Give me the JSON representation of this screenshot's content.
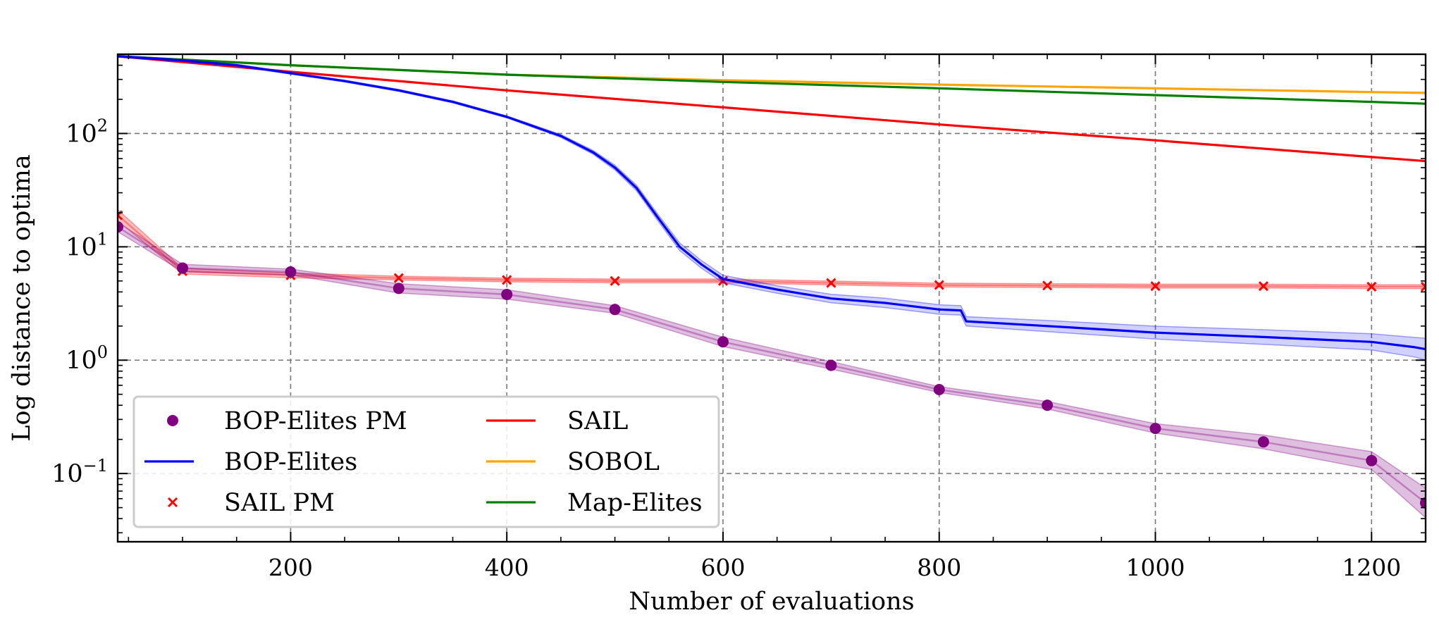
{
  "chart_data": {
    "type": "line",
    "title": "",
    "xlabel": "Number of evaluations",
    "ylabel": "Log distance to optima",
    "xlim": [
      40,
      1250
    ],
    "ylim": [
      0.025,
      500
    ],
    "yscale": "log",
    "grid": true,
    "legend_position": "lower-left",
    "x_ticks": [
      {
        "value": 200,
        "label": "200"
      },
      {
        "value": 400,
        "label": "400"
      },
      {
        "value": 600,
        "label": "600"
      },
      {
        "value": 800,
        "label": "800"
      },
      {
        "value": 1000,
        "label": "1000"
      },
      {
        "value": 1200,
        "label": "1200"
      }
    ],
    "y_ticks": [
      {
        "value": 100,
        "base": "10",
        "exp": "2"
      },
      {
        "value": 10,
        "base": "10",
        "exp": "1"
      },
      {
        "value": 1,
        "base": "10",
        "exp": "0"
      },
      {
        "value": 0.1,
        "base": "10",
        "exp": "−1"
      }
    ],
    "series": [
      {
        "name": "BOP-Elites PM",
        "kind": "marker-line",
        "marker": "circle",
        "color": "#800080",
        "x": [
          40,
          100,
          200,
          300,
          400,
          500,
          600,
          700,
          800,
          900,
          1000,
          1100,
          1200,
          1250
        ],
        "y": [
          15,
          6.5,
          6.0,
          4.3,
          3.8,
          2.8,
          1.45,
          0.9,
          0.55,
          0.4,
          0.25,
          0.19,
          0.13,
          0.055
        ],
        "band": [
          1.1,
          1.08,
          1.06,
          1.1,
          1.1,
          1.08,
          1.1,
          1.08,
          1.06,
          1.08,
          1.1,
          1.15,
          1.2,
          1.35
        ]
      },
      {
        "name": "BOP-Elites",
        "kind": "line",
        "color": "#0000ff",
        "x": [
          40,
          100,
          150,
          200,
          250,
          300,
          350,
          400,
          450,
          480,
          500,
          520,
          540,
          560,
          580,
          600,
          650,
          700,
          750,
          800,
          820,
          825,
          900,
          1000,
          1100,
          1200,
          1240,
          1250
        ],
        "y": [
          480,
          440,
          400,
          340,
          290,
          240,
          190,
          140,
          95,
          68,
          50,
          33,
          18,
          10,
          7,
          5.2,
          4.2,
          3.5,
          3.2,
          2.8,
          2.75,
          2.2,
          2.0,
          1.75,
          1.6,
          1.45,
          1.3,
          1.25
        ],
        "band": [
          1.02,
          1.02,
          1.02,
          1.02,
          1.02,
          1.02,
          1.02,
          1.02,
          1.03,
          1.04,
          1.05,
          1.06,
          1.07,
          1.08,
          1.08,
          1.08,
          1.08,
          1.09,
          1.1,
          1.1,
          1.1,
          1.1,
          1.12,
          1.14,
          1.16,
          1.18,
          1.22,
          1.25
        ]
      },
      {
        "name": "SAIL PM",
        "kind": "marker-line",
        "marker": "x",
        "color": "#ff0000",
        "x": [
          40,
          100,
          200,
          300,
          400,
          500,
          600,
          700,
          800,
          900,
          1000,
          1100,
          1200,
          1250
        ],
        "y": [
          19,
          6.1,
          5.6,
          5.3,
          5.1,
          5.0,
          5.0,
          4.8,
          4.6,
          4.55,
          4.5,
          4.5,
          4.45,
          4.45
        ],
        "band": [
          1.12,
          1.06,
          1.05,
          1.04,
          1.04,
          1.04,
          1.04,
          1.04,
          1.04,
          1.04,
          1.04,
          1.04,
          1.04,
          1.04
        ]
      },
      {
        "name": "SAIL",
        "kind": "line",
        "color": "#ff0000",
        "x": [
          40,
          200,
          400,
          600,
          800,
          1000,
          1200,
          1250
        ],
        "y": [
          480,
          350,
          240,
          170,
          120,
          87,
          62,
          57
        ]
      },
      {
        "name": "SOBOL",
        "kind": "line",
        "color": "#ffa500",
        "x": [
          40,
          200,
          400,
          600,
          800,
          1000,
          1200,
          1250
        ],
        "y": [
          480,
          400,
          330,
          295,
          270,
          250,
          232,
          228
        ]
      },
      {
        "name": "Map-Elites",
        "kind": "line",
        "color": "#008000",
        "x": [
          40,
          200,
          400,
          600,
          800,
          1000,
          1200,
          1250
        ],
        "y": [
          480,
          400,
          330,
          285,
          250,
          218,
          190,
          183
        ]
      }
    ]
  }
}
